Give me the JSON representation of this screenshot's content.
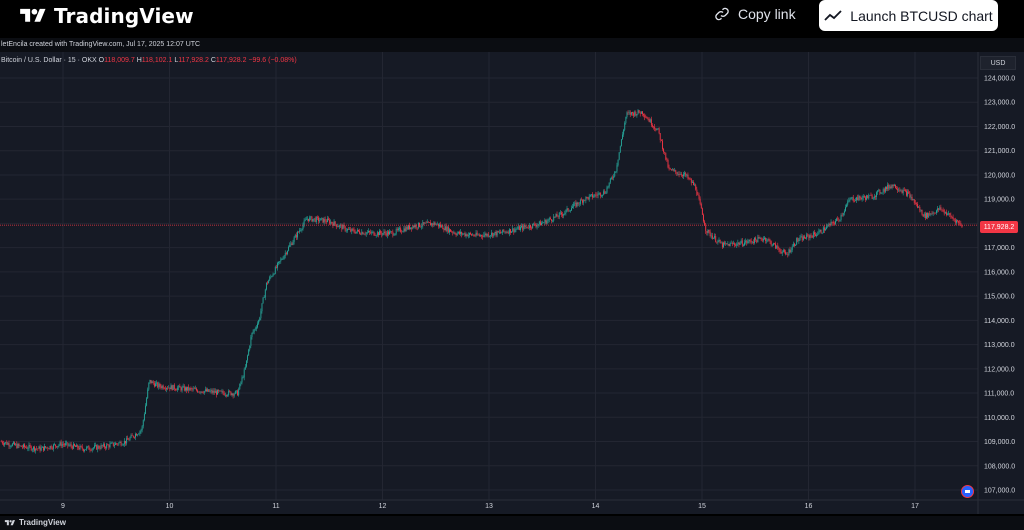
{
  "header": {
    "logo_text": "TradingView",
    "copy_link_label": "Copy link",
    "launch_label": "Launch BTCUSD chart"
  },
  "created_by": "letEncila created with TradingView.com, Jul 17, 2025 12:07 UTC",
  "legend": {
    "symbol": "Bitcoin / U.S. Dollar · 15 · OKX",
    "open_label": "O",
    "open": "118,009.7",
    "high_label": "H",
    "high": "118,102.1",
    "low_label": "L",
    "low": "117,928.2",
    "close_label": "C",
    "close": "117,928.2",
    "change": "−99.6 (−0.08%)"
  },
  "currency_label": "USD",
  "last_price_label": "117,928.2",
  "footer_logo_text": "TradingView",
  "colors": {
    "up": "#26a69a",
    "down": "#f23645",
    "background": "#161a25",
    "grid": "#232632",
    "price_line": "#f23645"
  },
  "chart_data": {
    "type": "candlestick",
    "symbol": "BTCUSD",
    "timeframe": "15",
    "exchange": "OKX",
    "x_ticks": [
      "9",
      "10",
      "11",
      "12",
      "13",
      "14",
      "15",
      "16",
      "17"
    ],
    "y_ticks": [
      "107,000.0",
      "108,000.0",
      "109,000.0",
      "110,000.0",
      "111,000.0",
      "112,000.0",
      "113,000.0",
      "114,000.0",
      "115,000.0",
      "116,000.0",
      "117,000.0",
      "118,000.0",
      "119,000.0",
      "120,000.0",
      "121,000.0",
      "122,000.0",
      "123,000.0",
      "124,000.0"
    ],
    "ylim": [
      106600,
      124400
    ],
    "last_price": 117928.2,
    "grid": true,
    "price_path": [
      [
        8.42,
        109000
      ],
      [
        8.6,
        108800
      ],
      [
        8.8,
        108700
      ],
      [
        9.0,
        108900
      ],
      [
        9.2,
        108700
      ],
      [
        9.4,
        108800
      ],
      [
        9.6,
        109000
      ],
      [
        9.75,
        109500
      ],
      [
        9.82,
        111500
      ],
      [
        9.9,
        111300
      ],
      [
        10.1,
        111200
      ],
      [
        10.3,
        111100
      ],
      [
        10.5,
        111000
      ],
      [
        10.65,
        111000
      ],
      [
        10.72,
        112000
      ],
      [
        10.78,
        113400
      ],
      [
        10.85,
        114000
      ],
      [
        10.92,
        115500
      ],
      [
        11.1,
        116800
      ],
      [
        11.3,
        118200
      ],
      [
        11.5,
        118100
      ],
      [
        11.7,
        117700
      ],
      [
        11.9,
        117600
      ],
      [
        12.1,
        117600
      ],
      [
        12.3,
        117900
      ],
      [
        12.5,
        118000
      ],
      [
        12.7,
        117600
      ],
      [
        12.9,
        117500
      ],
      [
        13.1,
        117600
      ],
      [
        13.3,
        117800
      ],
      [
        13.5,
        118000
      ],
      [
        13.7,
        118400
      ],
      [
        13.9,
        119000
      ],
      [
        14.1,
        119300
      ],
      [
        14.2,
        120200
      ],
      [
        14.3,
        122500
      ],
      [
        14.45,
        122600
      ],
      [
        14.6,
        121800
      ],
      [
        14.7,
        120200
      ],
      [
        14.85,
        120000
      ],
      [
        14.95,
        119500
      ],
      [
        15.05,
        117700
      ],
      [
        15.2,
        117100
      ],
      [
        15.4,
        117200
      ],
      [
        15.6,
        117400
      ],
      [
        15.8,
        116700
      ],
      [
        15.9,
        117300
      ],
      [
        16.1,
        117600
      ],
      [
        16.3,
        118200
      ],
      [
        16.4,
        119000
      ],
      [
        16.6,
        119100
      ],
      [
        16.8,
        119600
      ],
      [
        16.95,
        119200
      ],
      [
        17.1,
        118300
      ],
      [
        17.25,
        118600
      ],
      [
        17.45,
        117928
      ]
    ]
  }
}
